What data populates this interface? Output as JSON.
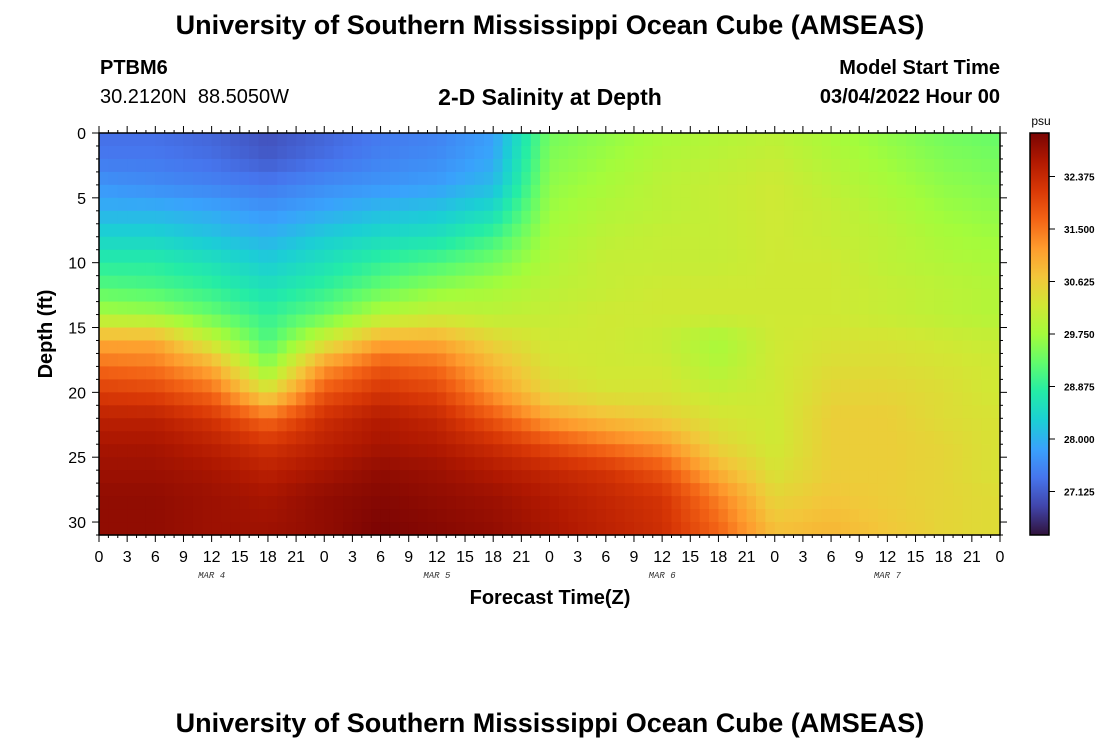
{
  "header": {
    "title": "University of Southern Mississippi Ocean Cube (AMSEAS)",
    "station_id": "PTBM6",
    "station_coords": "30.2120N  88.5050W",
    "plot_title": "2-D Salinity at Depth",
    "model_start_label": "Model Start Time",
    "model_start_value": "03/04/2022 Hour 00"
  },
  "footer": {
    "title": "University of Southern Mississippi Ocean Cube (AMSEAS)"
  },
  "chart_data": {
    "type": "heatmap",
    "xlabel": "Forecast Time(Z)",
    "ylabel": "Depth (ft)",
    "x_tick_labels": [
      "0",
      "3",
      "6",
      "9",
      "12",
      "15",
      "18",
      "21",
      "0",
      "3",
      "6",
      "9",
      "12",
      "15",
      "18",
      "21",
      "0",
      "3",
      "6",
      "9",
      "12",
      "15",
      "18",
      "21",
      "0",
      "3",
      "6",
      "9",
      "12",
      "15",
      "18",
      "21",
      "0"
    ],
    "x_hours_range": [
      0,
      96
    ],
    "day_labels": [
      {
        "label": "MAR 4",
        "hour": 12
      },
      {
        "label": "MAR 5",
        "hour": 36
      },
      {
        "label": "MAR 6",
        "hour": 60
      },
      {
        "label": "MAR 7",
        "hour": 84
      }
    ],
    "y_tick_labels": [
      "0",
      "5",
      "10",
      "15",
      "20",
      "25",
      "30"
    ],
    "ylim": [
      0,
      31
    ],
    "y_inverted": true,
    "colorbar": {
      "unit": "psu",
      "tick_labels": [
        "32.375",
        "31.500",
        "30.625",
        "29.750",
        "28.875",
        "28.000",
        "27.125"
      ],
      "range": [
        26.4,
        33.1
      ],
      "colors": [
        "#30123b",
        "#4145ab",
        "#4675ed",
        "#39a2fc",
        "#1bcfd4",
        "#24eca6",
        "#61fc6c",
        "#a4fc3b",
        "#d1e834",
        "#f3c63a",
        "#fe9b2d",
        "#f36315",
        "#d93806",
        "#b11901",
        "#7a0403"
      ]
    },
    "salinity_grid": {
      "hours": [
        0,
        6,
        12,
        18,
        24,
        30,
        36,
        42,
        48,
        54,
        60,
        66,
        72,
        78,
        84,
        90,
        96
      ],
      "depths_ft": [
        0,
        2,
        4,
        6,
        8,
        10,
        12,
        14,
        16,
        18,
        20,
        22,
        24,
        26,
        28,
        31
      ],
      "values": [
        [
          27.3,
          27.3,
          27.2,
          27.0,
          27.2,
          27.4,
          27.5,
          27.8,
          29.4,
          29.6,
          29.8,
          29.9,
          30.0,
          29.8,
          29.6,
          29.4,
          29.3
        ],
        [
          27.4,
          27.4,
          27.3,
          27.1,
          27.3,
          27.5,
          27.6,
          27.9,
          29.5,
          29.7,
          29.9,
          30.0,
          30.1,
          29.9,
          29.7,
          29.5,
          29.4
        ],
        [
          27.7,
          27.6,
          27.5,
          27.4,
          27.6,
          27.7,
          27.8,
          28.1,
          29.6,
          29.8,
          30.0,
          30.1,
          30.2,
          30.0,
          29.8,
          29.6,
          29.5
        ],
        [
          28.0,
          28.0,
          27.9,
          27.7,
          27.9,
          28.1,
          28.2,
          28.5,
          29.7,
          29.9,
          30.0,
          30.1,
          30.2,
          30.1,
          29.9,
          29.7,
          29.6
        ],
        [
          28.4,
          28.4,
          28.2,
          28.0,
          28.3,
          28.5,
          28.6,
          29.0,
          29.8,
          30.0,
          30.1,
          30.1,
          30.2,
          30.1,
          30.0,
          29.8,
          29.7
        ],
        [
          28.8,
          28.8,
          28.6,
          28.3,
          28.6,
          28.9,
          29.1,
          29.4,
          29.9,
          30.1,
          30.1,
          30.1,
          30.2,
          30.2,
          30.0,
          29.9,
          29.8
        ],
        [
          29.2,
          29.1,
          28.9,
          28.6,
          28.9,
          29.3,
          29.6,
          29.8,
          30.0,
          30.1,
          30.2,
          30.2,
          30.2,
          30.2,
          30.1,
          30.0,
          29.9
        ],
        [
          29.8,
          29.7,
          29.3,
          28.9,
          29.3,
          29.9,
          30.1,
          30.0,
          30.1,
          30.2,
          30.2,
          30.2,
          30.2,
          30.2,
          30.1,
          30.0,
          29.9
        ],
        [
          31.0,
          31.0,
          30.1,
          29.1,
          30.2,
          31.0,
          31.0,
          30.5,
          30.2,
          30.2,
          30.1,
          29.8,
          30.2,
          30.3,
          30.3,
          30.2,
          30.1
        ],
        [
          31.6,
          31.5,
          31.0,
          29.6,
          31.2,
          31.8,
          31.6,
          30.9,
          30.3,
          30.2,
          30.2,
          29.9,
          30.2,
          30.4,
          30.4,
          30.3,
          30.2
        ],
        [
          32.1,
          32.0,
          31.6,
          30.4,
          31.8,
          32.2,
          32.0,
          31.2,
          30.5,
          30.3,
          30.3,
          30.1,
          30.2,
          30.5,
          30.5,
          30.4,
          30.2
        ],
        [
          32.5,
          32.5,
          32.2,
          31.6,
          32.3,
          32.6,
          32.4,
          31.8,
          31.1,
          30.8,
          30.6,
          30.3,
          30.2,
          30.6,
          30.6,
          30.4,
          30.3
        ],
        [
          32.7,
          32.7,
          32.5,
          32.2,
          32.5,
          32.7,
          32.6,
          32.3,
          31.9,
          31.5,
          31.2,
          30.5,
          30.2,
          30.6,
          30.6,
          30.5,
          30.3
        ],
        [
          32.8,
          32.8,
          32.7,
          32.5,
          32.7,
          32.9,
          32.8,
          32.6,
          32.4,
          32.2,
          31.8,
          30.9,
          30.3,
          30.6,
          30.6,
          30.5,
          30.3
        ],
        [
          32.9,
          32.9,
          32.8,
          32.7,
          32.9,
          33.0,
          32.9,
          32.8,
          32.6,
          32.4,
          32.2,
          31.4,
          30.5,
          30.7,
          30.6,
          30.5,
          30.4
        ],
        [
          32.9,
          32.9,
          32.8,
          32.8,
          32.9,
          33.1,
          33.0,
          32.9,
          32.7,
          32.5,
          32.3,
          31.7,
          30.8,
          30.9,
          30.7,
          30.5,
          30.4
        ]
      ]
    }
  }
}
